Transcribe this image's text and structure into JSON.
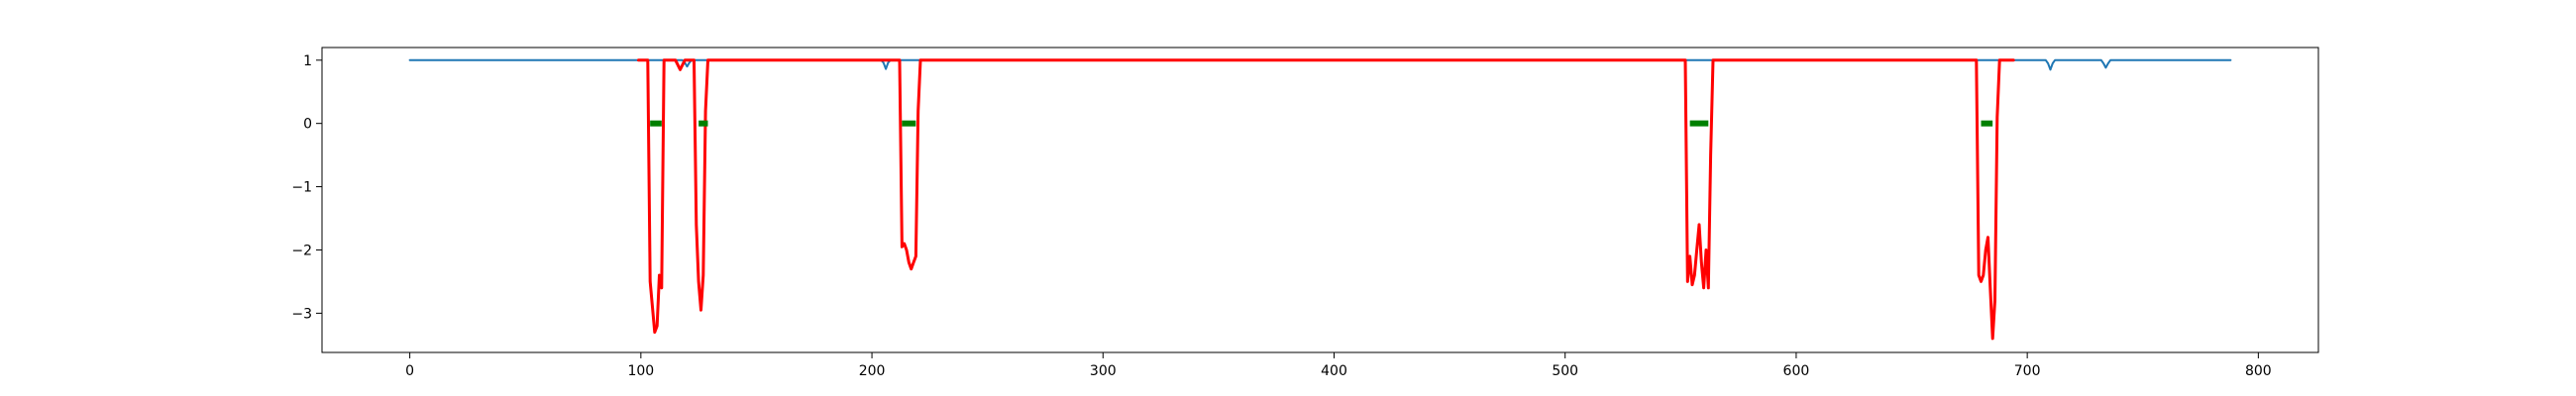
{
  "chart_data": {
    "type": "line",
    "title": "",
    "xlabel": "",
    "ylabel": "",
    "xlim": [
      -38,
      826
    ],
    "ylim": [
      -3.62,
      1.2
    ],
    "xticks": [
      0,
      100,
      200,
      300,
      400,
      500,
      600,
      700,
      800
    ],
    "yticks": [
      1,
      0,
      -1,
      -2,
      -3
    ],
    "xtick_labels": [
      "0",
      "100",
      "200",
      "300",
      "400",
      "500",
      "600",
      "700",
      "800"
    ],
    "ytick_labels": [
      "1",
      "0",
      "−1",
      "−2",
      "−3"
    ],
    "grid": false,
    "legend": "none",
    "series": [
      {
        "color": "#1f77b4",
        "x": [
          0,
          118,
          119,
          120,
          121,
          122,
          204,
          205,
          206,
          207,
          208,
          708,
          709,
          710,
          711,
          712,
          732,
          733,
          734,
          735,
          736,
          788
        ],
        "y": [
          1,
          1,
          0.96,
          0.9,
          0.96,
          1,
          1,
          0.96,
          0.86,
          0.96,
          1,
          1,
          0.95,
          0.85,
          0.95,
          1,
          1,
          0.95,
          0.88,
          0.95,
          1,
          1
        ]
      },
      {
        "color": "#ff0000",
        "x": [
          99,
          103,
          104,
          105,
          106,
          107,
          108,
          109,
          110,
          112,
          114,
          115,
          117,
          119,
          121,
          123,
          124,
          125,
          126,
          127,
          128,
          129,
          130,
          131,
          133,
          135,
          137,
          139,
          141,
          210,
          212,
          213,
          214,
          215,
          216,
          217,
          218,
          219,
          220,
          221,
          222,
          224,
          226,
          228,
          230,
          548,
          550,
          552,
          553,
          554,
          555,
          556,
          557,
          558,
          559,
          560,
          561,
          562,
          563,
          564,
          565,
          566,
          567,
          569,
          571,
          573,
          675,
          677,
          678,
          679,
          680,
          681,
          682,
          683,
          684,
          685,
          686,
          687,
          688,
          689,
          690,
          692,
          694
        ],
        "y": [
          1,
          1,
          -2.5,
          -2.9,
          -3.3,
          -3.2,
          -2.4,
          -2.6,
          1,
          1,
          1,
          1,
          0.85,
          1,
          1,
          1,
          -1.6,
          -2.5,
          -2.95,
          -2.4,
          0.2,
          1,
          1,
          1,
          1,
          1,
          1,
          1,
          1,
          1,
          1,
          -1.95,
          -1.9,
          -2.0,
          -2.2,
          -2.3,
          -2.2,
          -2.1,
          0.2,
          1,
          1,
          1,
          1,
          1,
          1,
          1,
          1,
          1,
          -2.5,
          -2.1,
          -2.55,
          -2.4,
          -2.0,
          -1.6,
          -2.2,
          -2.6,
          -2.0,
          -2.6,
          -0.5,
          1,
          1,
          1,
          1,
          1,
          1,
          1,
          1,
          1,
          1,
          -2.4,
          -2.5,
          -2.4,
          -2.0,
          -1.8,
          -2.6,
          -3.4,
          -2.8,
          0.1,
          1,
          1,
          1,
          1,
          1
        ]
      },
      {
        "color": "#008000",
        "segments": [
          [
            104,
            109
          ],
          [
            125,
            129
          ],
          [
            213,
            219
          ],
          [
            554,
            562
          ],
          [
            680,
            685
          ]
        ],
        "y": 0
      }
    ]
  }
}
